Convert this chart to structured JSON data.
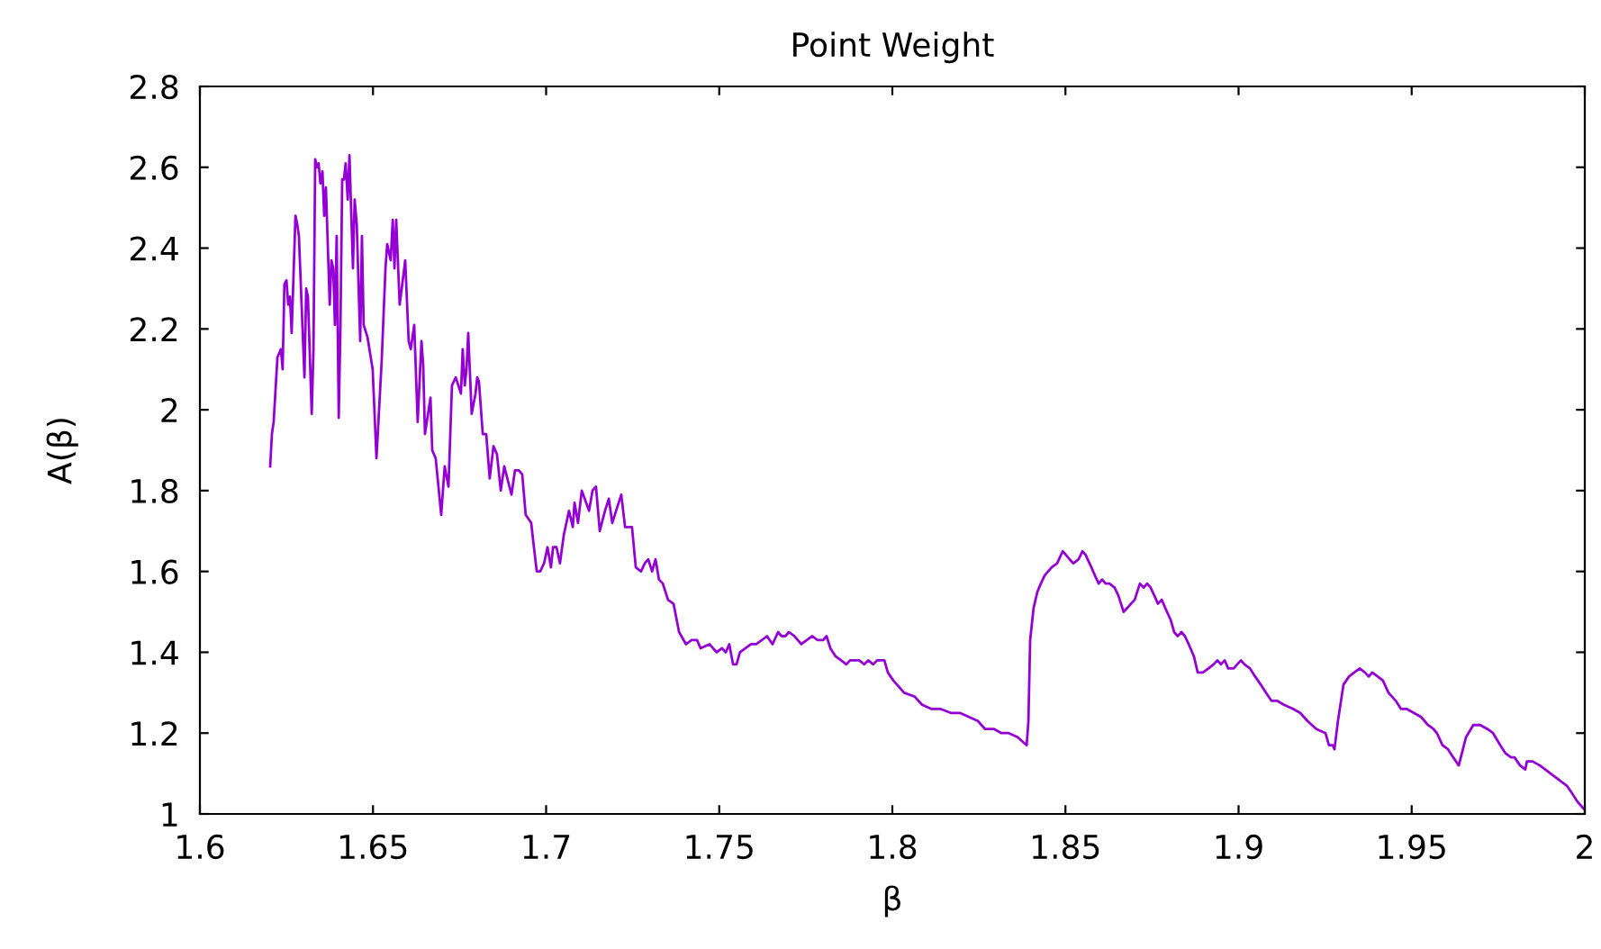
{
  "chart_data": {
    "type": "line",
    "title": "Point Weight",
    "xlabel": "β",
    "ylabel": "A(β)",
    "xlim": [
      1.6,
      2.0
    ],
    "xticks": [
      1.6,
      1.65,
      1.7,
      1.75,
      1.8,
      1.85,
      1.9,
      1.95,
      {
        "value": 2.0,
        "label": "2"
      }
    ],
    "ylim": [
      1,
      2.8
    ],
    "yticks": [
      {
        "value": 1,
        "label": "1"
      },
      1.2,
      1.4,
      1.6,
      1.8,
      {
        "value": 2,
        "label": "2"
      },
      2.2,
      2.4,
      2.6,
      2.8
    ],
    "grid": false,
    "legend": false,
    "marker": "none",
    "line_style": "solid",
    "series": [
      {
        "color": "#9400d3",
        "x": [
          1.6203,
          1.6208,
          1.6213,
          1.6224,
          1.6234,
          1.6239,
          1.6244,
          1.625,
          1.6255,
          1.626,
          1.6265,
          1.6276,
          1.6281,
          1.6286,
          1.6302,
          1.6307,
          1.6312,
          1.6323,
          1.6328,
          1.6333,
          1.6338,
          1.6343,
          1.6348,
          1.6354,
          1.6359,
          1.6364,
          1.6375,
          1.638,
          1.6385,
          1.639,
          1.6395,
          1.6401,
          1.6406,
          1.6411,
          1.6416,
          1.6421,
          1.6427,
          1.6432,
          1.6442,
          1.6447,
          1.6453,
          1.6463,
          1.6468,
          1.6473,
          1.6484,
          1.6499,
          1.651,
          1.6525,
          1.6536,
          1.6541,
          1.6551,
          1.6557,
          1.6562,
          1.6567,
          1.6577,
          1.6583,
          1.6593,
          1.6603,
          1.6609,
          1.6619,
          1.6629,
          1.664,
          1.6645,
          1.665,
          1.6666,
          1.6671,
          1.6681,
          1.6697,
          1.6707,
          1.6718,
          1.6728,
          1.6739,
          1.6754,
          1.6759,
          1.6765,
          1.677,
          1.6775,
          1.6785,
          1.6796,
          1.6801,
          1.6806,
          1.6817,
          1.6827,
          1.6837,
          1.6848,
          1.6858,
          1.6869,
          1.6879,
          1.69,
          1.691,
          1.6921,
          1.6931,
          1.6941,
          1.6957,
          1.6962,
          1.6973,
          1.6983,
          1.6994,
          1.7004,
          1.7014,
          1.702,
          1.703,
          1.704,
          1.7051,
          1.7066,
          1.7077,
          1.7082,
          1.7092,
          1.7103,
          1.7124,
          1.7134,
          1.7144,
          1.7155,
          1.717,
          1.7181,
          1.7191,
          1.7202,
          1.7217,
          1.7228,
          1.7248,
          1.7259,
          1.7274,
          1.7285,
          1.7295,
          1.7306,
          1.7316,
          1.7326,
          1.7337,
          1.7352,
          1.7368,
          1.7384,
          1.7404,
          1.742,
          1.7436,
          1.7446,
          1.7472,
          1.7482,
          1.7493,
          1.7508,
          1.7519,
          1.7529,
          1.754,
          1.755,
          1.756,
          1.7576,
          1.7592,
          1.7607,
          1.7623,
          1.7638,
          1.7654,
          1.767,
          1.768,
          1.7691,
          1.7701,
          1.7717,
          1.7737,
          1.7753,
          1.7769,
          1.7784,
          1.78,
          1.781,
          1.7821,
          1.7836,
          1.7852,
          1.7867,
          1.7878,
          1.7893,
          1.7904,
          1.7919,
          1.793,
          1.7945,
          1.7956,
          1.7966,
          1.7977,
          1.7987,
          1.8003,
          1.8034,
          1.8065,
          1.8086,
          1.8112,
          1.8138,
          1.8169,
          1.8195,
          1.8221,
          1.8247,
          1.8268,
          1.8294,
          1.8315,
          1.8336,
          1.8362,
          1.8388,
          1.8393,
          1.8398,
          1.8408,
          1.8419,
          1.8429,
          1.844,
          1.845,
          1.846,
          1.8476,
          1.8492,
          1.8502,
          1.8512,
          1.8523,
          1.8538,
          1.8549,
          1.8559,
          1.8564,
          1.8575,
          1.8585,
          1.8596,
          1.8606,
          1.8616,
          1.8627,
          1.8642,
          1.8653,
          1.8668,
          1.8679,
          1.8689,
          1.87,
          1.8715,
          1.8726,
          1.8736,
          1.8746,
          1.8757,
          1.8767,
          1.8778,
          1.8788,
          1.8804,
          1.8814,
          1.8824,
          1.8835,
          1.8845,
          1.8856,
          1.8871,
          1.8882,
          1.8897,
          1.8913,
          1.8928,
          1.8939,
          1.8949,
          1.896,
          1.897,
          1.8986,
          1.8996,
          1.9007,
          1.9017,
          1.9033,
          1.9048,
          1.9064,
          1.9079,
          1.9095,
          1.9111,
          1.9131,
          1.9157,
          1.9178,
          1.9199,
          1.9225,
          1.9251,
          1.9261,
          1.9272,
          1.9277,
          1.9287,
          1.9303,
          1.9319,
          1.9334,
          1.935,
          1.9365,
          1.9376,
          1.9386,
          1.9402,
          1.9417,
          1.9433,
          1.9454,
          1.9469,
          1.9485,
          1.9506,
          1.9527,
          1.9547,
          1.9563,
          1.9573,
          1.9589,
          1.9605,
          1.962,
          1.9636,
          1.9657,
          1.9678,
          1.9698,
          1.9719,
          1.9735,
          1.9756,
          1.9771,
          1.9787,
          1.9797,
          1.9813,
          1.9828,
          1.9833,
          1.9849,
          1.987,
          1.9886,
          1.9901,
          1.9917,
          1.9932,
          1.9948,
          1.9964,
          1.9979,
          2.0
        ],
        "values": [
          1.86,
          1.94,
          1.97,
          2.13,
          2.15,
          2.1,
          2.31,
          2.32,
          2.26,
          2.28,
          2.19,
          2.48,
          2.46,
          2.43,
          2.08,
          2.3,
          2.28,
          1.99,
          2.15,
          2.62,
          2.6,
          2.61,
          2.56,
          2.59,
          2.48,
          2.55,
          2.26,
          2.37,
          2.35,
          2.21,
          2.43,
          1.98,
          2.21,
          2.57,
          2.57,
          2.61,
          2.52,
          2.63,
          2.35,
          2.52,
          2.46,
          2.17,
          2.43,
          2.21,
          2.18,
          2.1,
          1.88,
          2.12,
          2.35,
          2.41,
          2.37,
          2.47,
          2.35,
          2.47,
          2.26,
          2.3,
          2.37,
          2.17,
          2.15,
          2.21,
          1.97,
          2.17,
          2.11,
          1.94,
          2.03,
          1.9,
          1.88,
          1.74,
          1.86,
          1.81,
          2.06,
          2.08,
          2.04,
          2.15,
          2.06,
          2.1,
          2.19,
          1.99,
          2.04,
          2.08,
          2.07,
          1.94,
          1.94,
          1.83,
          1.91,
          1.89,
          1.8,
          1.86,
          1.79,
          1.85,
          1.85,
          1.84,
          1.74,
          1.72,
          1.68,
          1.6,
          1.6,
          1.62,
          1.66,
          1.61,
          1.66,
          1.66,
          1.62,
          1.69,
          1.75,
          1.71,
          1.77,
          1.72,
          1.8,
          1.75,
          1.8,
          1.81,
          1.7,
          1.75,
          1.78,
          1.72,
          1.75,
          1.79,
          1.71,
          1.71,
          1.61,
          1.6,
          1.62,
          1.63,
          1.6,
          1.63,
          1.58,
          1.57,
          1.53,
          1.52,
          1.45,
          1.42,
          1.43,
          1.43,
          1.41,
          1.42,
          1.41,
          1.4,
          1.41,
          1.4,
          1.42,
          1.37,
          1.37,
          1.4,
          1.41,
          1.42,
          1.42,
          1.43,
          1.44,
          1.42,
          1.45,
          1.44,
          1.44,
          1.45,
          1.44,
          1.42,
          1.43,
          1.44,
          1.43,
          1.43,
          1.44,
          1.41,
          1.39,
          1.38,
          1.37,
          1.38,
          1.38,
          1.38,
          1.37,
          1.38,
          1.37,
          1.38,
          1.38,
          1.38,
          1.35,
          1.33,
          1.3,
          1.29,
          1.27,
          1.26,
          1.26,
          1.25,
          1.25,
          1.24,
          1.23,
          1.21,
          1.21,
          1.2,
          1.2,
          1.19,
          1.17,
          1.23,
          1.43,
          1.51,
          1.55,
          1.57,
          1.59,
          1.6,
          1.61,
          1.62,
          1.65,
          1.64,
          1.63,
          1.62,
          1.63,
          1.65,
          1.64,
          1.63,
          1.61,
          1.59,
          1.57,
          1.58,
          1.57,
          1.57,
          1.56,
          1.54,
          1.5,
          1.51,
          1.52,
          1.53,
          1.57,
          1.56,
          1.57,
          1.56,
          1.54,
          1.52,
          1.53,
          1.51,
          1.48,
          1.45,
          1.44,
          1.45,
          1.44,
          1.42,
          1.39,
          1.35,
          1.35,
          1.36,
          1.37,
          1.38,
          1.37,
          1.38,
          1.36,
          1.36,
          1.37,
          1.38,
          1.37,
          1.36,
          1.34,
          1.32,
          1.3,
          1.28,
          1.28,
          1.27,
          1.26,
          1.25,
          1.23,
          1.21,
          1.2,
          1.17,
          1.17,
          1.16,
          1.23,
          1.32,
          1.34,
          1.35,
          1.36,
          1.35,
          1.34,
          1.35,
          1.34,
          1.33,
          1.3,
          1.28,
          1.26,
          1.26,
          1.25,
          1.24,
          1.22,
          1.21,
          1.2,
          1.17,
          1.16,
          1.14,
          1.12,
          1.19,
          1.22,
          1.22,
          1.21,
          1.2,
          1.17,
          1.15,
          1.14,
          1.14,
          1.12,
          1.11,
          1.13,
          1.13,
          1.12,
          1.11,
          1.1,
          1.09,
          1.08,
          1.07,
          1.05,
          1.03,
          1.01
        ]
      }
    ]
  }
}
